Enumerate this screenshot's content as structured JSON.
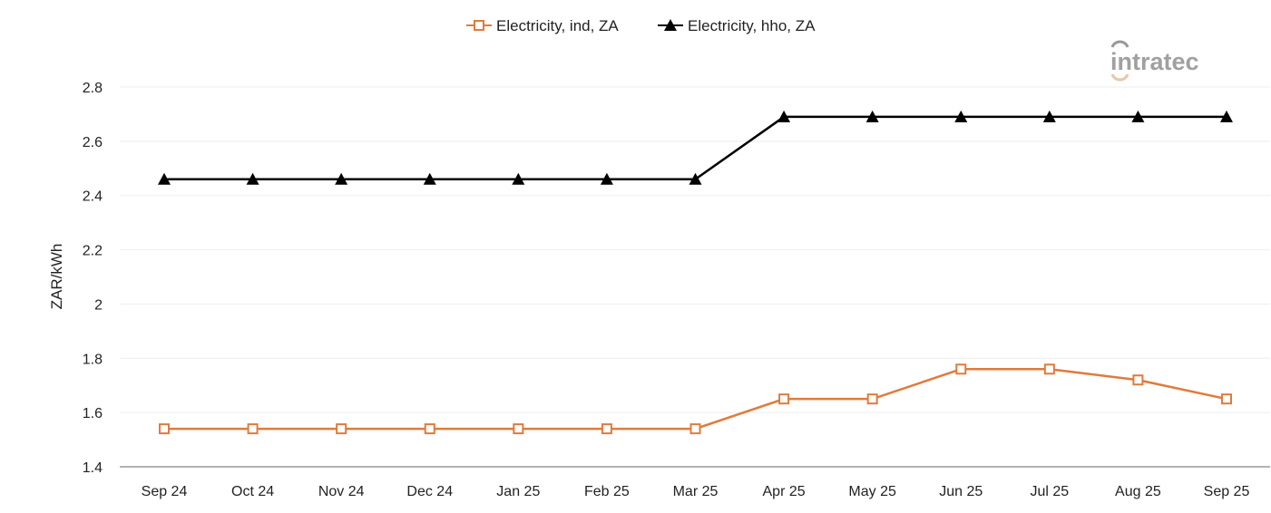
{
  "chart_data": {
    "type": "line",
    "title": "",
    "xlabel": "",
    "ylabel": "ZAR/kWh",
    "ylim": [
      1.4,
      2.8
    ],
    "yticks": [
      "1.4",
      "1.6",
      "1.8",
      "2",
      "2.2",
      "2.4",
      "2.6",
      "2.8"
    ],
    "grid": true,
    "legend_placement": "top",
    "categories": [
      "Sep 24",
      "Oct 24",
      "Nov 24",
      "Dec 24",
      "Jan 25",
      "Feb 25",
      "Mar 25",
      "Apr 25",
      "May 25",
      "Jun 25",
      "Jul 25",
      "Aug 25",
      "Sep 25"
    ],
    "series": [
      {
        "name": "Electricity, ind, ZA",
        "color": "#e07b3c",
        "marker": "square-open",
        "values": [
          1.54,
          1.54,
          1.54,
          1.54,
          1.54,
          1.54,
          1.54,
          1.65,
          1.65,
          1.76,
          1.76,
          1.72,
          1.65
        ]
      },
      {
        "name": "Electricity, hho, ZA",
        "color": "#000000",
        "marker": "triangle",
        "values": [
          2.46,
          2.46,
          2.46,
          2.46,
          2.46,
          2.46,
          2.46,
          2.69,
          2.69,
          2.69,
          2.69,
          2.69,
          2.69
        ]
      }
    ]
  },
  "logo": {
    "text": "intratec"
  }
}
